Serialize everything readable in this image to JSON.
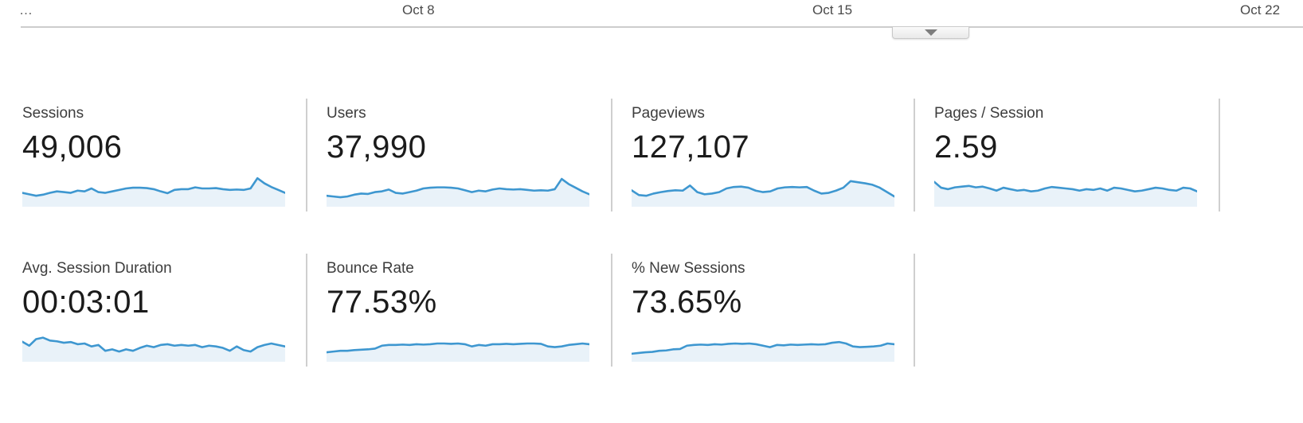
{
  "timeline": {
    "ellipsis": "…",
    "axis_labels": [
      {
        "text": "Oct 8"
      },
      {
        "text": "Oct 15"
      },
      {
        "text": "Oct 22"
      }
    ],
    "collapse_button": {
      "icon": "chevron-down"
    }
  },
  "metrics": {
    "colors": {
      "spark_line": "#3e97d0",
      "spark_fill": "#e9f2f9"
    },
    "cards": [
      {
        "label": "Sessions",
        "value": "49,006",
        "spark": [
          0.38,
          0.34,
          0.3,
          0.33,
          0.38,
          0.42,
          0.4,
          0.38,
          0.44,
          0.42,
          0.5,
          0.4,
          0.38,
          0.42,
          0.46,
          0.5,
          0.52,
          0.52,
          0.51,
          0.48,
          0.42,
          0.37,
          0.46,
          0.48,
          0.48,
          0.53,
          0.5,
          0.5,
          0.51,
          0.48,
          0.46,
          0.47,
          0.46,
          0.5,
          0.78,
          0.64,
          0.54,
          0.46,
          0.38
        ]
      },
      {
        "label": "Users",
        "value": "37,990",
        "spark": [
          0.3,
          0.28,
          0.26,
          0.28,
          0.33,
          0.36,
          0.35,
          0.4,
          0.42,
          0.47,
          0.38,
          0.36,
          0.4,
          0.44,
          0.5,
          0.52,
          0.53,
          0.53,
          0.52,
          0.5,
          0.45,
          0.4,
          0.44,
          0.42,
          0.47,
          0.5,
          0.48,
          0.47,
          0.48,
          0.46,
          0.44,
          0.45,
          0.44,
          0.48,
          0.76,
          0.62,
          0.52,
          0.42,
          0.34
        ]
      },
      {
        "label": "Pageviews",
        "value": "127,107",
        "spark": [
          0.45,
          0.32,
          0.3,
          0.36,
          0.4,
          0.43,
          0.45,
          0.44,
          0.58,
          0.4,
          0.34,
          0.36,
          0.4,
          0.5,
          0.54,
          0.55,
          0.52,
          0.44,
          0.4,
          0.42,
          0.5,
          0.53,
          0.54,
          0.53,
          0.54,
          0.44,
          0.36,
          0.38,
          0.44,
          0.52,
          0.7,
          0.67,
          0.64,
          0.6,
          0.52,
          0.4,
          0.28
        ]
      },
      {
        "label": "Pages / Session",
        "value": "2.59",
        "spark": [
          0.68,
          0.52,
          0.48,
          0.53,
          0.55,
          0.57,
          0.53,
          0.55,
          0.5,
          0.44,
          0.52,
          0.48,
          0.44,
          0.46,
          0.42,
          0.44,
          0.5,
          0.54,
          0.52,
          0.5,
          0.48,
          0.44,
          0.48,
          0.46,
          0.5,
          0.44,
          0.52,
          0.5,
          0.46,
          0.42,
          0.44,
          0.48,
          0.52,
          0.5,
          0.46,
          0.44,
          0.52,
          0.5,
          0.42
        ]
      },
      {
        "label": "Avg. Session Duration",
        "value": "00:03:01",
        "spark": [
          0.55,
          0.44,
          0.62,
          0.66,
          0.58,
          0.56,
          0.52,
          0.54,
          0.48,
          0.5,
          0.42,
          0.46,
          0.3,
          0.34,
          0.28,
          0.34,
          0.3,
          0.38,
          0.44,
          0.4,
          0.46,
          0.48,
          0.44,
          0.46,
          0.44,
          0.46,
          0.4,
          0.44,
          0.42,
          0.38,
          0.3,
          0.42,
          0.32,
          0.28,
          0.4,
          0.46,
          0.5,
          0.46,
          0.42
        ]
      },
      {
        "label": "Bounce Rate",
        "value": "77.53%",
        "spark": [
          0.26,
          0.28,
          0.3,
          0.3,
          0.32,
          0.33,
          0.34,
          0.36,
          0.44,
          0.46,
          0.46,
          0.47,
          0.46,
          0.48,
          0.47,
          0.48,
          0.5,
          0.5,
          0.49,
          0.5,
          0.48,
          0.42,
          0.46,
          0.44,
          0.48,
          0.48,
          0.49,
          0.48,
          0.49,
          0.5,
          0.5,
          0.49,
          0.42,
          0.4,
          0.42,
          0.46,
          0.48,
          0.5,
          0.48
        ]
      },
      {
        "label": "% New Sessions",
        "value": "73.65%",
        "spark": [
          0.22,
          0.24,
          0.26,
          0.27,
          0.3,
          0.31,
          0.34,
          0.35,
          0.44,
          0.46,
          0.47,
          0.46,
          0.48,
          0.47,
          0.49,
          0.5,
          0.49,
          0.5,
          0.48,
          0.44,
          0.4,
          0.46,
          0.45,
          0.47,
          0.46,
          0.47,
          0.48,
          0.47,
          0.48,
          0.52,
          0.54,
          0.5,
          0.42,
          0.4,
          0.41,
          0.42,
          0.44,
          0.5,
          0.48
        ]
      }
    ]
  }
}
